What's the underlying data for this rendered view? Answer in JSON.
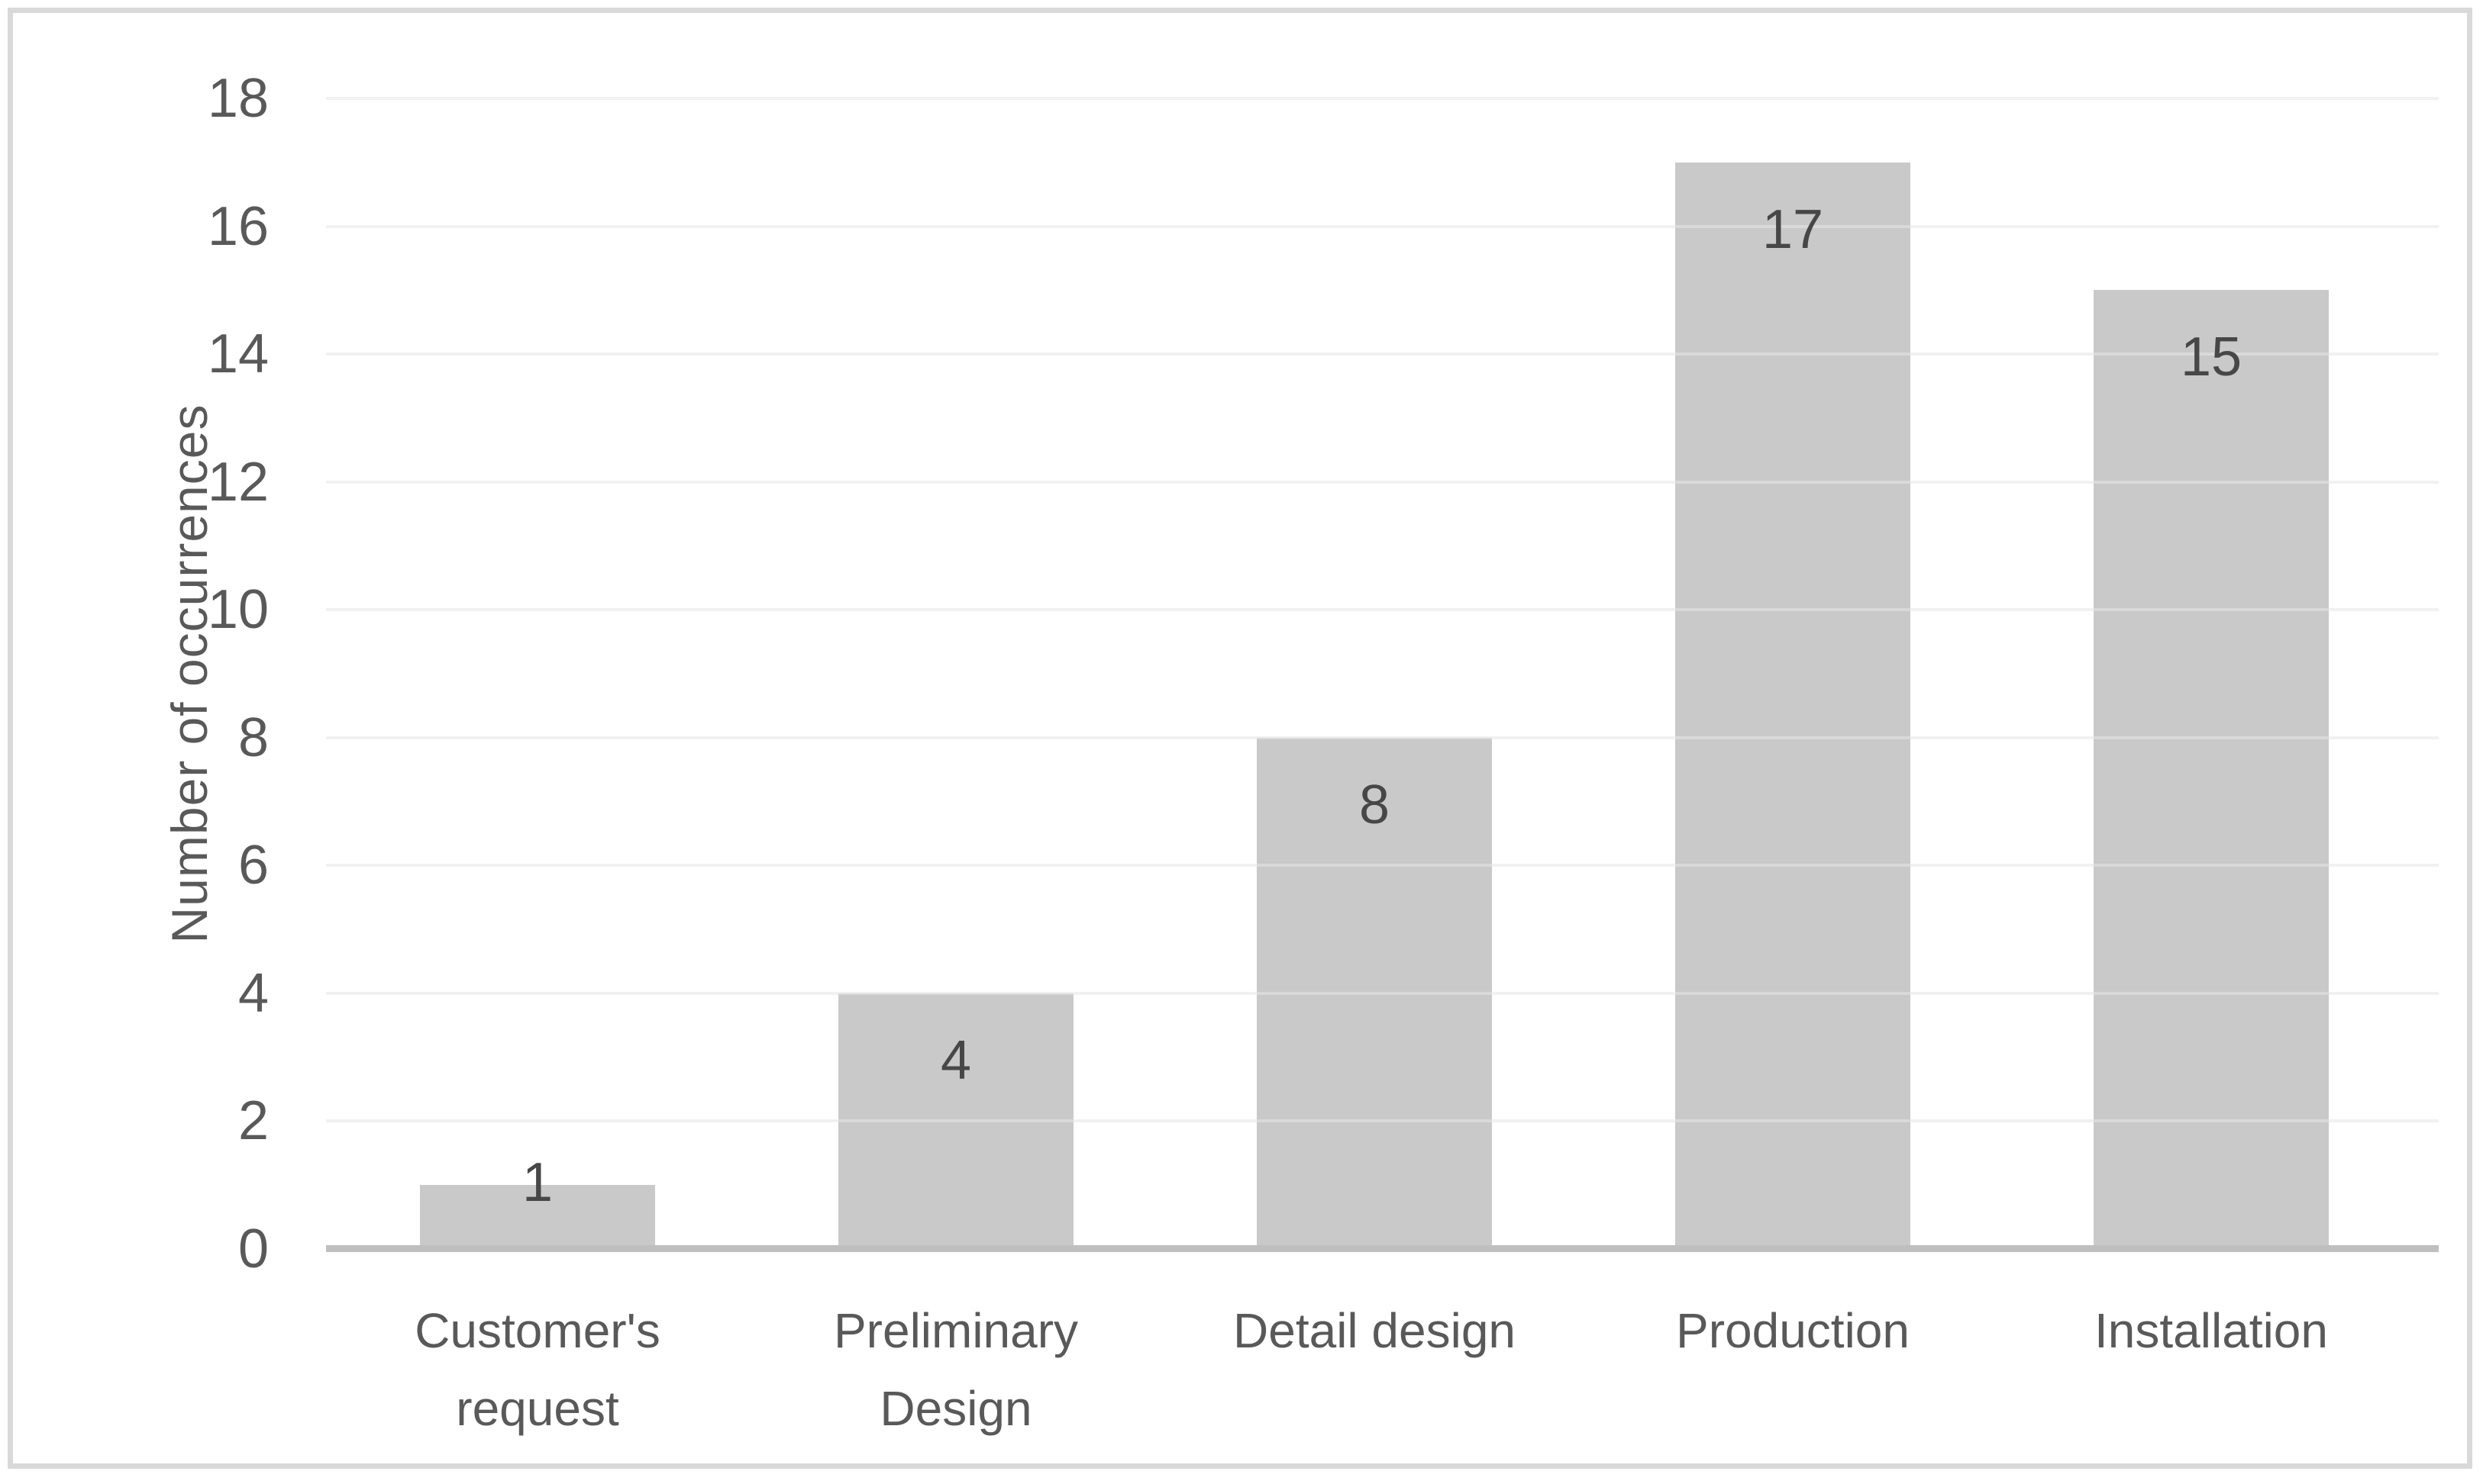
{
  "chart_data": {
    "type": "bar",
    "title": "",
    "categories": [
      "Customer's request",
      "Preliminary Design",
      "Detail design",
      "Production",
      "Installation"
    ],
    "values": [
      1,
      4,
      8,
      17,
      15
    ],
    "data_labels": [
      "1",
      "4",
      "8",
      "17",
      "15"
    ],
    "xlabel": "",
    "ylabel": "Number of occurrences",
    "ylim": [
      0,
      18
    ],
    "ytick_step": 2,
    "yticks": [
      0,
      2,
      4,
      6,
      8,
      10,
      12,
      14,
      16,
      18
    ],
    "grid": true,
    "legend_position": "none",
    "colors": {
      "bar_fill": "#c9c9c9",
      "axis_line": "#bfbfbf",
      "gridline": "#ededed",
      "tick_text": "#595959",
      "data_label_text": "#474747",
      "frame_border": "#d9d9d9",
      "background": "#ffffff"
    }
  }
}
